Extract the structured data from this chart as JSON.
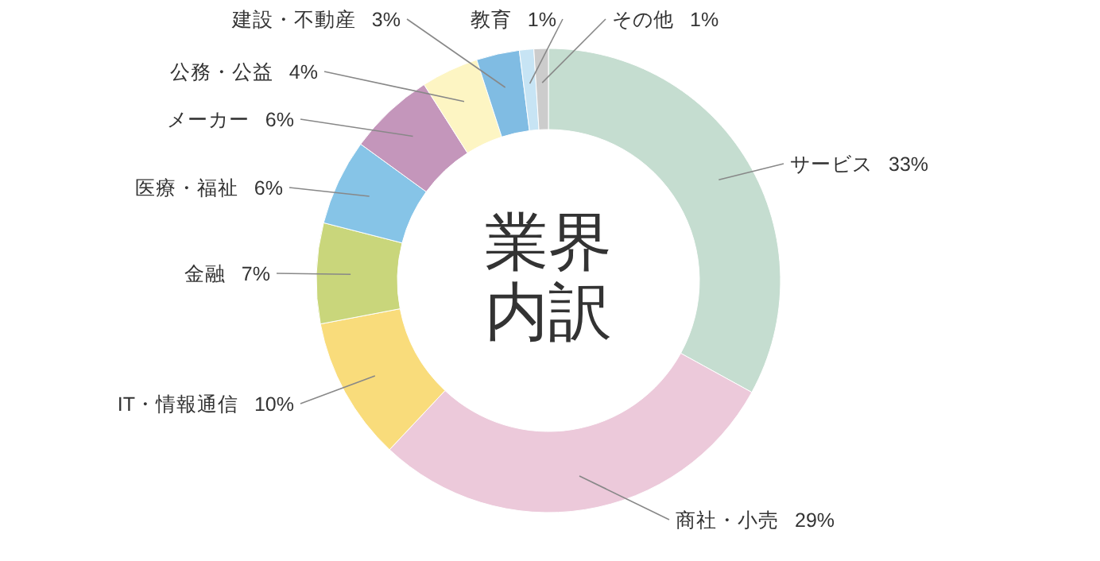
{
  "chart_data": {
    "type": "donut",
    "title": "業界内訳",
    "categories": [
      "サービス",
      "商社・小売",
      "IT・情報通信",
      "金融",
      "医療・福祉",
      "メーカー",
      "公務・公益",
      "建設・不動産",
      "教育",
      "その他"
    ],
    "values": [
      33,
      29,
      10,
      7,
      6,
      6,
      4,
      3,
      1,
      1
    ],
    "value_labels": [
      "33%",
      "29%",
      "10%",
      "7%",
      "6%",
      "6%",
      "4%",
      "3%",
      "1%",
      "1%"
    ],
    "colors": [
      "#c5ddd0",
      "#ecc9da",
      "#f9dc7b",
      "#c9d67b",
      "#86c4e7",
      "#c496bb",
      "#fdf5c3",
      "#80bce3",
      "#c7e4f4",
      "#cccccc"
    ]
  }
}
